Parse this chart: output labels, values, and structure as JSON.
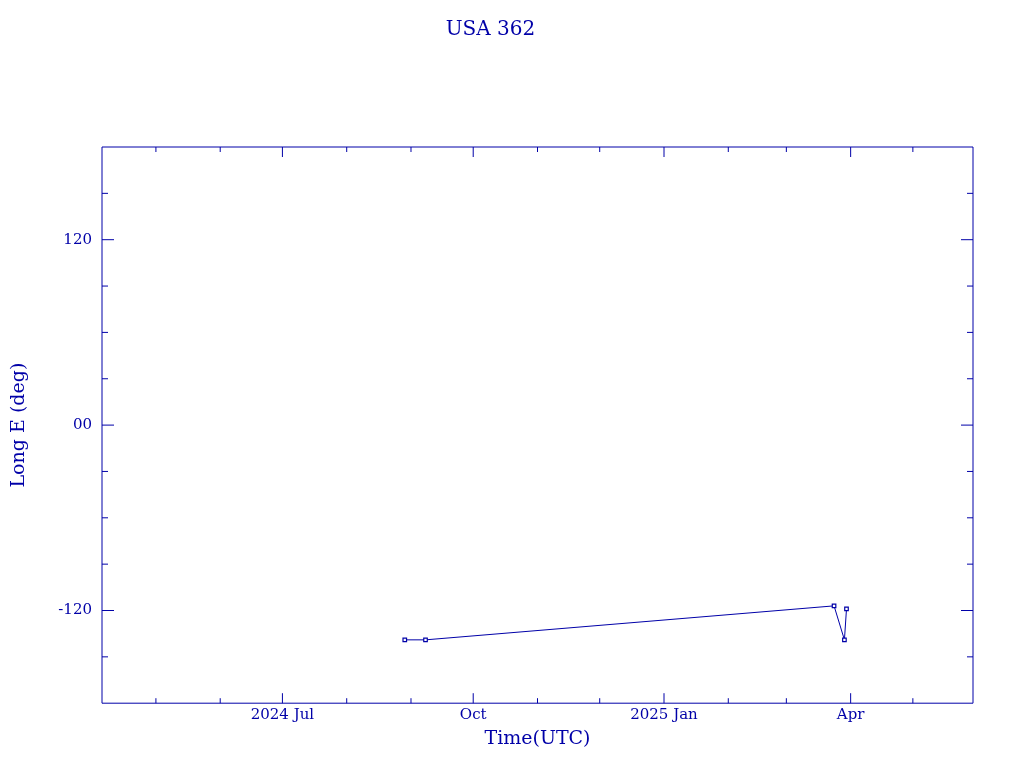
{
  "chart_data": {
    "type": "line",
    "title": "USA 362",
    "xlabel": "Time(UTC)",
    "ylabel": "Long E (deg)",
    "series": [
      {
        "color": "#0000a8",
        "x": [
          "2024-08-29",
          "2024-09-08",
          "2025-03-24",
          "2025-03-29",
          "2025-03-30"
        ],
        "values": [
          -139,
          -139,
          -117,
          -139,
          -119
        ]
      }
    ],
    "xlim": [
      "2024-04-05",
      "2025-05-30"
    ],
    "xticks": [
      {
        "value": "2024-05-01",
        "label": null
      },
      {
        "value": "2024-06-01",
        "label": null
      },
      {
        "value": "2024-07-01",
        "label": "2024 Jul"
      },
      {
        "value": "2024-08-01",
        "label": null
      },
      {
        "value": "2024-09-01",
        "label": null
      },
      {
        "value": "2024-10-01",
        "label": "Oct"
      },
      {
        "value": "2024-11-01",
        "label": null
      },
      {
        "value": "2024-12-01",
        "label": null
      },
      {
        "value": "2025-01-01",
        "label": "2025 Jan"
      },
      {
        "value": "2025-02-01",
        "label": null
      },
      {
        "value": "2025-03-01",
        "label": null
      },
      {
        "value": "2025-04-01",
        "label": "Apr"
      },
      {
        "value": "2025-05-01",
        "label": null
      }
    ],
    "ylim": [
      -180,
      180
    ],
    "yticks": [
      {
        "value": -150,
        "label": null
      },
      -120,
      {
        "value": -90,
        "label": null
      },
      {
        "value": -60,
        "label": null
      },
      {
        "value": -30,
        "label": null
      },
      {
        "value": 0,
        "label": "00"
      },
      {
        "value": 30,
        "label": null
      },
      {
        "value": 60,
        "label": null
      },
      {
        "value": 90,
        "label": null
      },
      120,
      {
        "value": 150,
        "label": null
      }
    ],
    "grid": false,
    "legend": false,
    "marker": "square",
    "line_style": "solid"
  }
}
